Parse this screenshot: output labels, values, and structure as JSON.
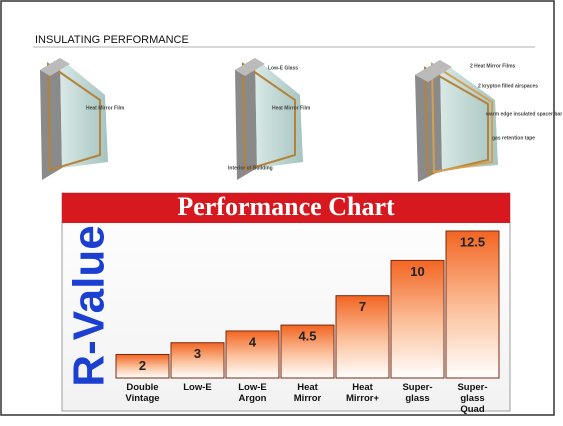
{
  "slide_title": "INSULATING PERFORMANCE",
  "diagrams": [
    {
      "labels": [
        "Heat Mirror Film"
      ]
    },
    {
      "labels": [
        "Low-E Glass",
        "Heat Mirror Film",
        "Interior of Building"
      ]
    },
    {
      "labels": [
        "2 Heat Mirror Films",
        "2 krypton filled airspaces",
        "warm edge insulated spacer bar",
        "gas retention tape"
      ]
    }
  ],
  "chart_data": {
    "type": "bar",
    "title": "Performance Chart",
    "y_label": "R-Value",
    "categories": [
      "Double Vintage",
      "Low-E",
      "Low-E Argon",
      "Heat Mirror",
      "Heat Mirror+",
      "Super-glass",
      "Super-glass Quad"
    ],
    "values": [
      2,
      3,
      4,
      4.5,
      7,
      10,
      12.5
    ],
    "color": "#f26522",
    "title_color": "#d7191f",
    "label_color": "#1a3fd1",
    "ylim": [
      0,
      12.5
    ]
  }
}
